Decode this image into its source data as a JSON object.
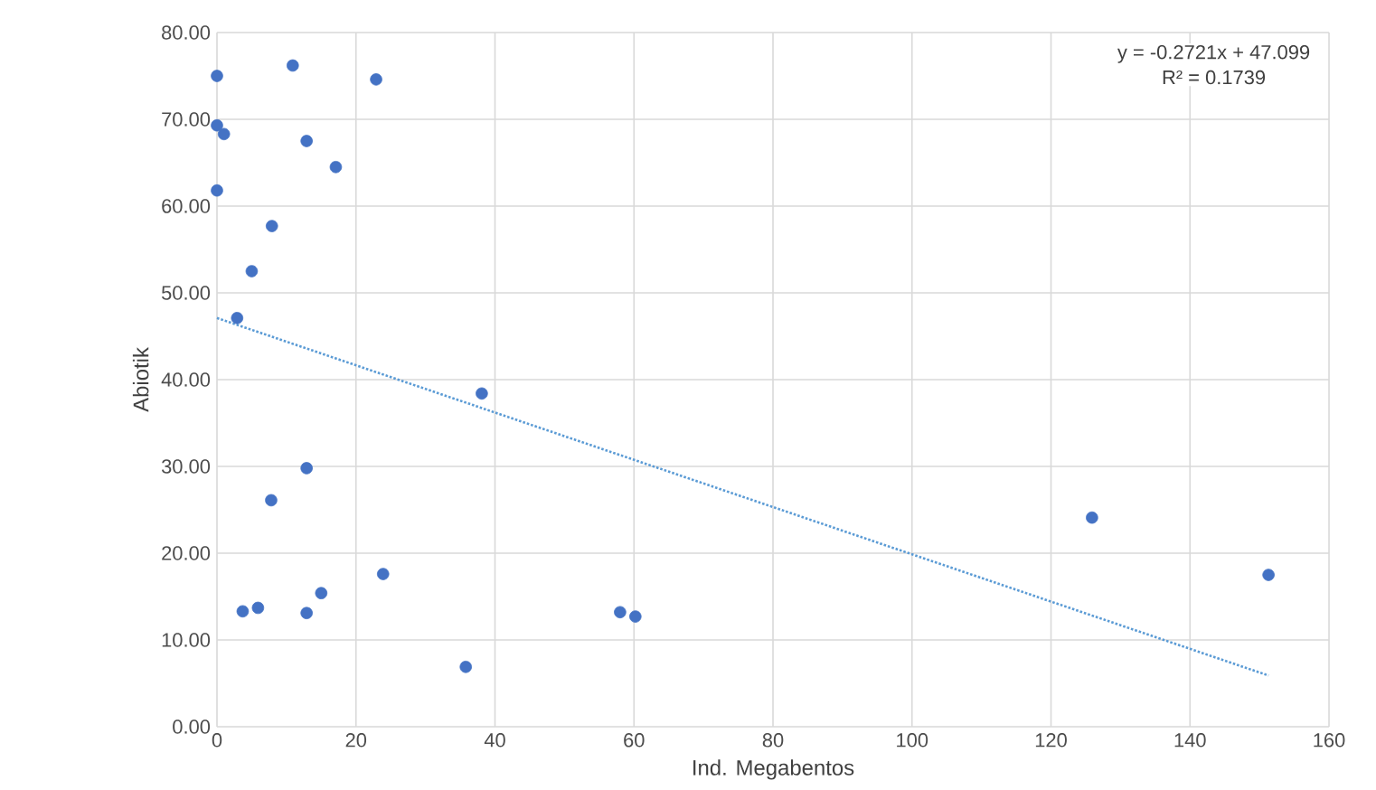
{
  "chart_data": {
    "type": "scatter",
    "xlabel": "Ind. Megabentos",
    "ylabel": "Abiotik",
    "series": [
      {
        "color": "#4472c4",
        "marker": "circle",
        "x": [
          0,
          10.9,
          22.9,
          0,
          1,
          12.9,
          17.1,
          0,
          7.9,
          5.0,
          2.9,
          38.1,
          12.9,
          7.8,
          23.9,
          15.0,
          3.7,
          5.9,
          12.9,
          35.8,
          58.0,
          60.2,
          125.9,
          151.3
        ],
        "values": [
          75.0,
          76.2,
          74.6,
          69.3,
          68.3,
          67.5,
          64.5,
          61.8,
          57.7,
          52.5,
          47.1,
          38.4,
          29.8,
          26.1,
          17.6,
          15.4,
          13.3,
          13.7,
          13.1,
          6.9,
          13.2,
          12.7,
          24.1,
          17.5
        ]
      },
      {
        "type": "line",
        "color": "#5b9bd5",
        "line_style": "dotted",
        "marker": "none",
        "x": [
          0,
          151.3
        ],
        "values": [
          47.1,
          5.9
        ]
      }
    ],
    "annotations": [
      "y = -0.2721x + 47.099",
      "R² = 0.1739"
    ],
    "xlim": [
      0,
      160
    ],
    "xticks": [
      0,
      20,
      40,
      60,
      80,
      100,
      120,
      140,
      160
    ],
    "ylim": [
      0,
      80
    ],
    "yticks": [
      {
        "value": 0,
        "label": "0.00"
      },
      {
        "value": 10,
        "label": "10.00"
      },
      {
        "value": 20,
        "label": "20.00"
      },
      {
        "value": 30,
        "label": "30.00"
      },
      {
        "value": 40,
        "label": "40.00"
      },
      {
        "value": 50,
        "label": "50.00"
      },
      {
        "value": 60,
        "label": "60.00"
      },
      {
        "value": 70,
        "label": "70.00"
      },
      {
        "value": 80,
        "label": "80.00"
      }
    ],
    "grid": true
  }
}
